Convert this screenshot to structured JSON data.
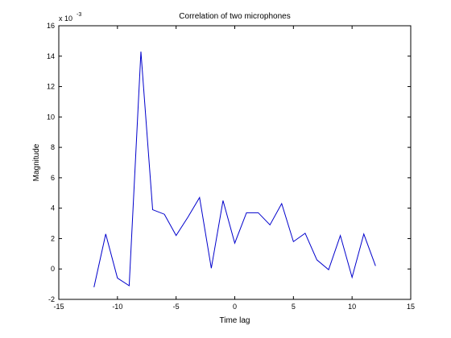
{
  "chart_data": {
    "type": "line",
    "title": "Correlation of two microphones",
    "xlabel": "Time lag",
    "ylabel": "Magnitude",
    "xlim": [
      -15,
      15
    ],
    "ylim": [
      -2,
      16
    ],
    "y_scale_label": "x 10",
    "y_scale_exponent": "-3",
    "x_ticks": [
      "-15",
      "-10",
      "-5",
      "0",
      "5",
      "10",
      "15"
    ],
    "y_ticks": [
      "-2",
      "0",
      "2",
      "4",
      "6",
      "8",
      "10",
      "12",
      "14",
      "16"
    ],
    "grid": false,
    "series": [
      {
        "color": "#0000cc",
        "x": [
          -12,
          -11,
          -10,
          -9,
          -8,
          -7,
          -6,
          -5,
          -4,
          -3,
          -2,
          -1,
          0,
          1,
          2,
          3,
          4,
          5,
          6,
          7,
          8,
          9,
          10,
          11,
          12
        ],
        "y": [
          -1.2,
          2.3,
          -0.6,
          -1.1,
          14.3,
          3.9,
          3.6,
          2.2,
          3.4,
          4.7,
          0.05,
          4.5,
          1.7,
          3.7,
          3.7,
          2.9,
          4.3,
          1.8,
          2.35,
          0.6,
          -0.05,
          2.2,
          -0.55,
          2.3,
          0.2
        ]
      }
    ]
  }
}
